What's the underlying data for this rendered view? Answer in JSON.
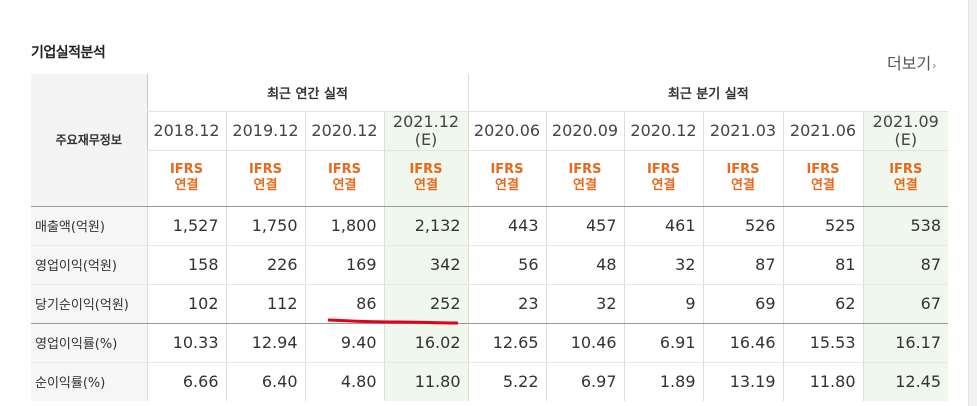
{
  "page": {
    "title": "기업실적분석",
    "more_label": "더보기",
    "more_arrow": "›"
  },
  "table": {
    "header_label": "주요재무정보",
    "annual_group": "최근 연간 실적",
    "quarter_group": "최근 분기 실적",
    "periods": [
      {
        "period": "2018.12",
        "est": ""
      },
      {
        "period": "2019.12",
        "est": ""
      },
      {
        "period": "2020.12",
        "est": ""
      },
      {
        "period": "2021.12",
        "est": "(E)"
      },
      {
        "period": "2020.06",
        "est": ""
      },
      {
        "period": "2020.09",
        "est": ""
      },
      {
        "period": "2020.12",
        "est": ""
      },
      {
        "period": "2021.03",
        "est": ""
      },
      {
        "period": "2021.06",
        "est": ""
      },
      {
        "period": "2021.09",
        "est": "(E)"
      }
    ],
    "ifrs_line1": "IFRS",
    "ifrs_line2": "연결",
    "rows": [
      {
        "label": "매출액(억원)",
        "values": [
          "1,527",
          "1,750",
          "1,800",
          "2,132",
          "443",
          "457",
          "461",
          "526",
          "525",
          "538"
        ]
      },
      {
        "label": "영업이익(억원)",
        "values": [
          "158",
          "226",
          "169",
          "342",
          "56",
          "48",
          "32",
          "87",
          "81",
          "87"
        ]
      },
      {
        "label": "당기순이익(억원)",
        "values": [
          "102",
          "112",
          "86",
          "252",
          "23",
          "32",
          "9",
          "69",
          "62",
          "67"
        ]
      },
      {
        "label": "영업이익률(%)",
        "values": [
          "10.33",
          "12.94",
          "9.40",
          "16.02",
          "12.65",
          "10.46",
          "6.91",
          "16.46",
          "15.53",
          "16.17"
        ]
      },
      {
        "label": "순이익률(%)",
        "values": [
          "6.66",
          "6.40",
          "4.80",
          "11.80",
          "5.22",
          "6.97",
          "1.89",
          "13.19",
          "11.80",
          "12.45"
        ]
      }
    ]
  },
  "colors": {
    "ifrs": "#e8691b",
    "estimate_bg": "#f0f7ec",
    "annotation": "#e3001b"
  }
}
